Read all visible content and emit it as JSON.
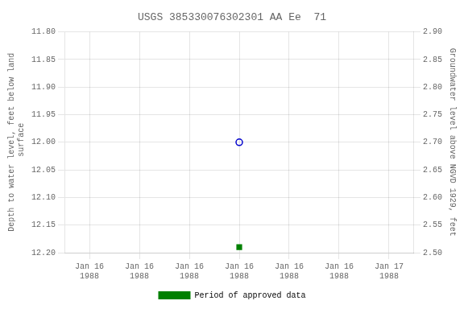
{
  "chart_data": {
    "type": "scatter",
    "title": "USGS 385330076302301 AA Ee  71",
    "y_label": "Depth to water level, feet below land\n surface",
    "y2_label": "Groundwater level above NGVD 1929, feet",
    "categories": [
      "Jan 16\n1988",
      "Jan 16\n1988",
      "Jan 16\n1988",
      "Jan 16\n1988",
      "Jan 16\n1988",
      "Jan 16\n1988",
      "Jan 17\n1988"
    ],
    "series": [
      {
        "color": "#0000cc",
        "marker": "open_circle",
        "values": [
          null,
          null,
          null,
          12.0,
          null,
          null,
          null
        ]
      },
      {
        "name": "Period of approved data",
        "color": "#008000",
        "marker": "square",
        "values": [
          null,
          null,
          null,
          12.19,
          null,
          null,
          null
        ]
      }
    ],
    "ylim": [
      12.2,
      11.8
    ],
    "yticks": [
      {
        "value": 11.8,
        "label": "11.80"
      },
      {
        "value": 11.85,
        "label": "11.85"
      },
      {
        "value": 11.9,
        "label": "11.90"
      },
      {
        "value": 11.95,
        "label": "11.95"
      },
      {
        "value": 12.0,
        "label": "12.00"
      },
      {
        "value": 12.05,
        "label": "12.05"
      },
      {
        "value": 12.1,
        "label": "12.10"
      },
      {
        "value": 12.15,
        "label": "12.15"
      },
      {
        "value": 12.2,
        "label": "12.20"
      }
    ],
    "y2lim": [
      2.5,
      2.9
    ],
    "y2ticks": [
      {
        "value": 2.5,
        "label": "2.50"
      },
      {
        "value": 2.55,
        "label": "2.55"
      },
      {
        "value": 2.6,
        "label": "2.60"
      },
      {
        "value": 2.65,
        "label": "2.65"
      },
      {
        "value": 2.7,
        "label": "2.70"
      },
      {
        "value": 2.75,
        "label": "2.75"
      },
      {
        "value": 2.8,
        "label": "2.80"
      },
      {
        "value": 2.85,
        "label": "2.85"
      },
      {
        "value": 2.9,
        "label": "2.90"
      }
    ],
    "grid": true,
    "legend": "bottom"
  }
}
